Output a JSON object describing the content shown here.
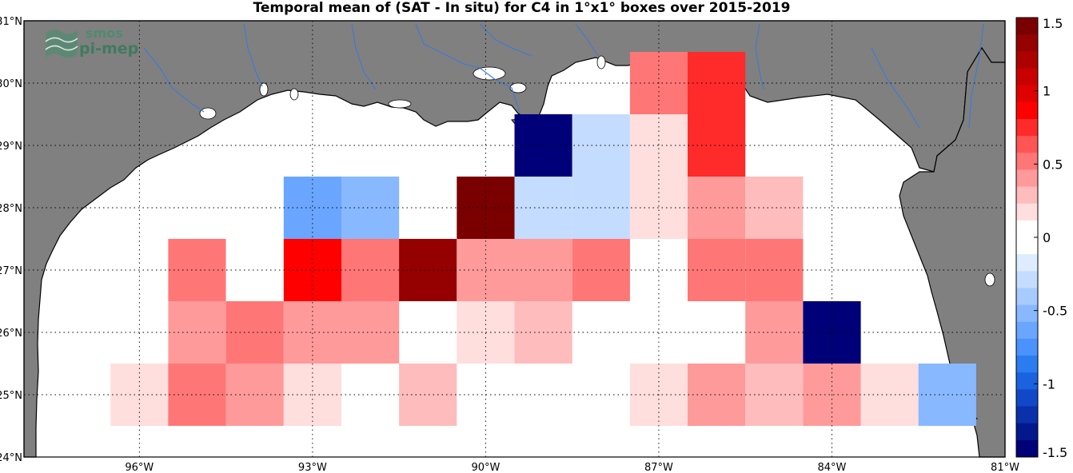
{
  "title": "Temporal mean of (SAT - In situ) for C4 in 1°x1° boxes over 2015-2019",
  "logo": {
    "line1": "smos",
    "line2": "pi-mep"
  },
  "map": {
    "lon_range": [
      -98,
      -81
    ],
    "lat_range": [
      24,
      31
    ],
    "lon_ticks": [
      -96,
      -93,
      -90,
      -87,
      -84,
      -81
    ],
    "lat_ticks": [
      24,
      25,
      26,
      27,
      28,
      29,
      30,
      31
    ],
    "lon_tick_labels": [
      "96°W",
      "93°W",
      "90°W",
      "87°W",
      "84°W",
      "81°W"
    ],
    "lat_tick_labels": [
      "24°N",
      "25°N",
      "26°N",
      "27°N",
      "28°N",
      "29°N",
      "30°N",
      "31°N"
    ],
    "grid": true,
    "land_color": "#808080",
    "ocean_color": "#ffffff",
    "river_color": "#3a7bd5"
  },
  "colorbar": {
    "min": -1.5,
    "max": 1.5,
    "ticks": [
      1.5,
      1,
      0.5,
      0,
      -0.5,
      -1,
      -1.5
    ],
    "tick_labels": [
      "1.5",
      "1",
      "0.5",
      "0",
      "-0.5",
      "-1",
      "-1.5"
    ],
    "colors_top_to_bottom": [
      "#7a0000",
      "#950000",
      "#ad0000",
      "#c80000",
      "#e00000",
      "#ff0000",
      "#ff2a2a",
      "#ff5555",
      "#ff7676",
      "#ff9a9a",
      "#ffbcbc",
      "#ffdede",
      "#ffffff",
      "#ffffff",
      "#deecff",
      "#c4dcff",
      "#a8cbff",
      "#88b8ff",
      "#6aa6ff",
      "#4a92ff",
      "#2a7cf0",
      "#1a62e0",
      "#1048c8",
      "#0a30aa",
      "#04188e",
      "#000078"
    ]
  },
  "chart_data": {
    "type": "heatmap",
    "title": "Temporal mean of (SAT - In situ) for C4 in 1°x1° boxes over 2015-2019",
    "xlabel": "",
    "ylabel": "",
    "vmin": -1.5,
    "vmax": 1.5,
    "cells": [
      {
        "lon": -87,
        "lat": 30,
        "value": 0.55
      },
      {
        "lon": -86,
        "lat": 30,
        "value": 0.75
      },
      {
        "lon": -89,
        "lat": 29,
        "value": -1.5
      },
      {
        "lon": -88,
        "lat": 29,
        "value": -0.25
      },
      {
        "lon": -87,
        "lat": 29,
        "value": 0.15
      },
      {
        "lon": -86,
        "lat": 29,
        "value": 0.75
      },
      {
        "lon": -93,
        "lat": 28,
        "value": -0.6
      },
      {
        "lon": -92,
        "lat": 28,
        "value": -0.5
      },
      {
        "lon": -90,
        "lat": 28,
        "value": 1.5
      },
      {
        "lon": -89,
        "lat": 28,
        "value": -0.25
      },
      {
        "lon": -88,
        "lat": 28,
        "value": -0.25
      },
      {
        "lon": -87,
        "lat": 28,
        "value": 0.15
      },
      {
        "lon": -86,
        "lat": 28,
        "value": 0.45
      },
      {
        "lon": -85,
        "lat": 28,
        "value": 0.3
      },
      {
        "lon": -95,
        "lat": 27,
        "value": 0.55
      },
      {
        "lon": -94,
        "lat": 27,
        "value": -0.1
      },
      {
        "lon": -93,
        "lat": 27,
        "value": 0.9
      },
      {
        "lon": -92,
        "lat": 27,
        "value": 0.55
      },
      {
        "lon": -91,
        "lat": 27,
        "value": 1.35
      },
      {
        "lon": -90,
        "lat": 27,
        "value": 0.35
      },
      {
        "lon": -89,
        "lat": 27,
        "value": 0.45
      },
      {
        "lon": -88,
        "lat": 27,
        "value": 0.55
      },
      {
        "lon": -86,
        "lat": 27,
        "value": 0.55
      },
      {
        "lon": -85,
        "lat": 27,
        "value": 0.55
      },
      {
        "lon": -95,
        "lat": 26,
        "value": 0.35
      },
      {
        "lon": -94,
        "lat": 26,
        "value": 0.55
      },
      {
        "lon": -93,
        "lat": 26,
        "value": 0.35
      },
      {
        "lon": -92,
        "lat": 26,
        "value": 0.45
      },
      {
        "lon": -90,
        "lat": 26,
        "value": 0.15
      },
      {
        "lon": -89,
        "lat": 26,
        "value": 0.3
      },
      {
        "lon": -85,
        "lat": 26,
        "value": 0.45
      },
      {
        "lon": -84,
        "lat": 26,
        "value": -1.5
      },
      {
        "lon": -96,
        "lat": 25,
        "value": 0.15
      },
      {
        "lon": -95,
        "lat": 25,
        "value": 0.55
      },
      {
        "lon": -94,
        "lat": 25,
        "value": 0.45
      },
      {
        "lon": -93,
        "lat": 25,
        "value": 0.15
      },
      {
        "lon": -92,
        "lat": 25,
        "value": -0.1
      },
      {
        "lon": -91,
        "lat": 25,
        "value": 0.3
      },
      {
        "lon": -87,
        "lat": 25,
        "value": 0.15
      },
      {
        "lon": -86,
        "lat": 25,
        "value": 0.45
      },
      {
        "lon": -85,
        "lat": 25,
        "value": 0.3
      },
      {
        "lon": -84,
        "lat": 25,
        "value": 0.45
      },
      {
        "lon": -83,
        "lat": 25,
        "value": 0.15
      },
      {
        "lon": -82,
        "lat": 25,
        "value": -0.5
      }
    ]
  }
}
